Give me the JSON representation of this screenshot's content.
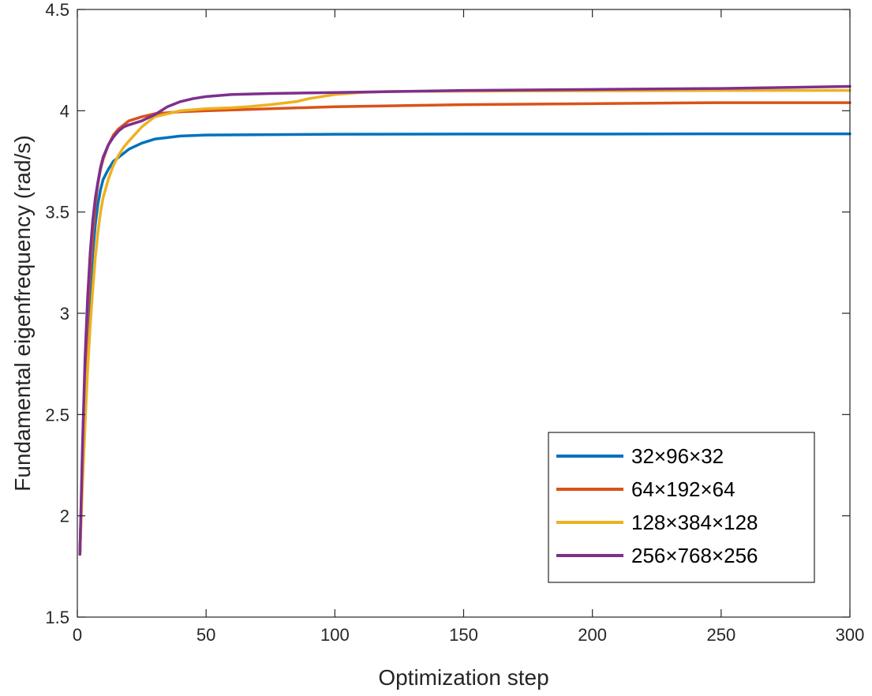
{
  "chart_data": {
    "type": "line",
    "title": "",
    "xlabel": "Optimization step",
    "ylabel": "Fundamental eigenfrequency (rad/s)",
    "xlim": [
      0,
      300
    ],
    "ylim": [
      1.5,
      4.5
    ],
    "xticks": [
      0,
      50,
      100,
      150,
      200,
      250,
      300
    ],
    "yticks": [
      1.5,
      2,
      2.5,
      3,
      3.5,
      4,
      4.5
    ],
    "xtick_labels": [
      "0",
      "50",
      "100",
      "150",
      "200",
      "250",
      "300"
    ],
    "ytick_labels": [
      "1.5",
      "2",
      "2.5",
      "3",
      "3.5",
      "4",
      "4.5"
    ],
    "grid": false,
    "legend_position": "bottom-right",
    "series": [
      {
        "name": "32×96×32",
        "color": "#0072BD",
        "x": [
          1,
          2,
          3,
          4,
          5,
          6,
          7,
          8,
          9,
          10,
          12,
          14,
          16,
          18,
          20,
          25,
          30,
          40,
          50,
          75,
          100,
          150,
          200,
          250,
          300
        ],
        "y": [
          1.81,
          2.25,
          2.6,
          2.9,
          3.12,
          3.3,
          3.44,
          3.54,
          3.61,
          3.66,
          3.71,
          3.75,
          3.77,
          3.79,
          3.81,
          3.84,
          3.86,
          3.875,
          3.88,
          3.882,
          3.884,
          3.885,
          3.885,
          3.886,
          3.886
        ]
      },
      {
        "name": "64×192×64",
        "color": "#D95319",
        "x": [
          1,
          2,
          3,
          4,
          5,
          6,
          7,
          8,
          9,
          10,
          12,
          14,
          16,
          18,
          20,
          25,
          30,
          40,
          50,
          75,
          100,
          150,
          200,
          250,
          300
        ],
        "y": [
          1.81,
          2.3,
          2.7,
          3.0,
          3.22,
          3.4,
          3.54,
          3.64,
          3.71,
          3.76,
          3.83,
          3.88,
          3.91,
          3.93,
          3.95,
          3.97,
          3.985,
          3.995,
          4.0,
          4.01,
          4.02,
          4.03,
          4.035,
          4.04,
          4.04
        ]
      },
      {
        "name": "128×384×128",
        "color": "#EDB120",
        "x": [
          1,
          2,
          3,
          4,
          5,
          6,
          7,
          8,
          9,
          10,
          12,
          14,
          16,
          18,
          20,
          25,
          30,
          40,
          50,
          60,
          66,
          75,
          85,
          90,
          100,
          110,
          120,
          150,
          200,
          250,
          300
        ],
        "y": [
          1.81,
          2.15,
          2.45,
          2.72,
          2.94,
          3.12,
          3.28,
          3.4,
          3.5,
          3.57,
          3.66,
          3.73,
          3.78,
          3.82,
          3.85,
          3.92,
          3.97,
          4.0,
          4.01,
          4.015,
          4.02,
          4.03,
          4.045,
          4.06,
          4.08,
          4.09,
          4.095,
          4.097,
          4.098,
          4.1,
          4.1
        ]
      },
      {
        "name": "256×768×256",
        "color": "#7E2F8E",
        "x": [
          1,
          2,
          3,
          4,
          5,
          6,
          7,
          8,
          9,
          10,
          12,
          14,
          16,
          18,
          20,
          25,
          30,
          35,
          40,
          45,
          50,
          60,
          75,
          100,
          150,
          200,
          250,
          300
        ],
        "y": [
          1.81,
          2.35,
          2.78,
          3.08,
          3.3,
          3.46,
          3.57,
          3.65,
          3.72,
          3.77,
          3.83,
          3.87,
          3.9,
          3.92,
          3.93,
          3.95,
          3.98,
          4.02,
          4.045,
          4.06,
          4.07,
          4.08,
          4.085,
          4.09,
          4.1,
          4.105,
          4.11,
          4.12
        ]
      }
    ]
  }
}
